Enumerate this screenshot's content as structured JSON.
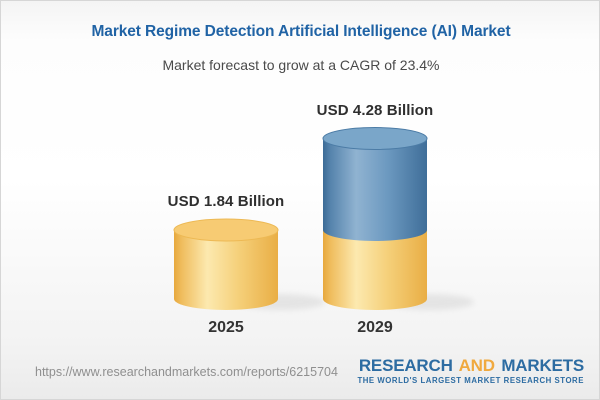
{
  "header": {
    "title": "Market Regime Detection Artificial Intelligence (AI) Market",
    "subtitle": "Market forecast to grow at a CAGR of 23.4%"
  },
  "chart_data": {
    "type": "bar",
    "style": "3d-cylinder-stacked",
    "title": "Market Regime Detection Artificial Intelligence (AI) Market",
    "subtitle": "Market forecast to grow at a CAGR of 23.4%",
    "unit": "USD Billion",
    "cagr_percent": 23.4,
    "categories": [
      "2025",
      "2029"
    ],
    "values": [
      1.84,
      4.28
    ],
    "value_labels": [
      "USD 1.84 Billion",
      "USD 4.28 Billion"
    ],
    "bars": [
      {
        "category": "2025",
        "value": 1.84,
        "value_label": "USD 1.84 Billion",
        "segments": [
          {
            "value": 1.84,
            "color_role": "base"
          }
        ]
      },
      {
        "category": "2029",
        "value": 4.28,
        "value_label": "USD 4.28 Billion",
        "segments": [
          {
            "value": 1.84,
            "color_role": "base"
          },
          {
            "value": 2.44,
            "color_role": "growth"
          }
        ]
      }
    ],
    "legend": "none",
    "axes": "none"
  },
  "colors": {
    "title_blue": "#2063A5",
    "subtitle_gray": "#4A4A4A",
    "bar_base_yellow": "#F2C261",
    "bar_growth_blue": "#4E81AD",
    "cap_yellow": "#F7CB73",
    "cap_yellow_rim": "#EDB954",
    "cap_blue": "#7AA6C9",
    "cap_blue_rim": "#4C7CA6",
    "logo_blue": "#2D6CA2",
    "logo_orange": "#F0A93F",
    "url_gray": "#8F8F8F"
  },
  "footer": {
    "url": "https://www.researchandmarkets.com/reports/6215704",
    "logo": {
      "word1": "RESEARCH",
      "word2": "AND",
      "word3": "MARKETS",
      "tagline": "THE WORLD'S LARGEST MARKET RESEARCH STORE"
    }
  }
}
